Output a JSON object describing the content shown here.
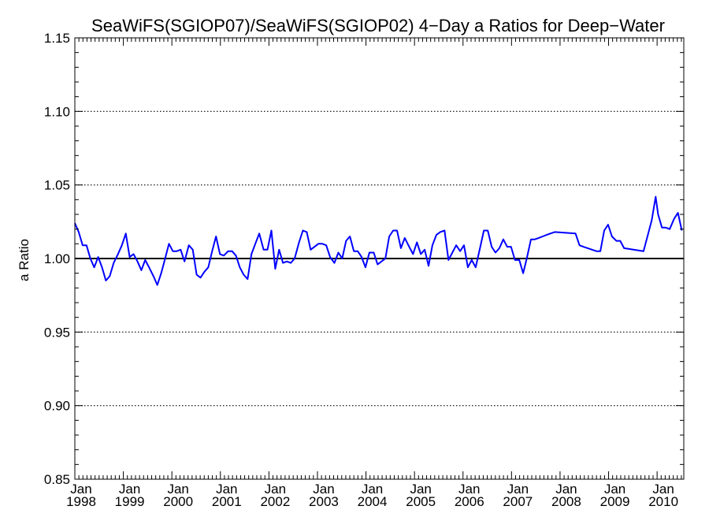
{
  "chart_data": {
    "type": "line",
    "title": "SeaWiFS(SGIOP07)/SeaWiFS(SGIOP02) 4−Day a Ratios for Deep−Water",
    "xlabel": "",
    "ylabel": "a Ratio",
    "xlim": [
      1998.0,
      2010.55
    ],
    "ylim": [
      0.85,
      1.15
    ],
    "yticks": [
      "0.85",
      "0.90",
      "0.95",
      "1.00",
      "1.05",
      "1.10",
      "1.15"
    ],
    "ytick_values": [
      0.85,
      0.9,
      0.95,
      1.0,
      1.05,
      1.1,
      1.15
    ],
    "xticks": [
      {
        "month": "Jan",
        "year": "1998",
        "value": 1998
      },
      {
        "month": "Jan",
        "year": "1999",
        "value": 1999
      },
      {
        "month": "Jan",
        "year": "2000",
        "value": 2000
      },
      {
        "month": "Jan",
        "year": "2001",
        "value": 2001
      },
      {
        "month": "Jan",
        "year": "2002",
        "value": 2002
      },
      {
        "month": "Jan",
        "year": "2003",
        "value": 2003
      },
      {
        "month": "Jan",
        "year": "2004",
        "value": 2004
      },
      {
        "month": "Jan",
        "year": "2005",
        "value": 2005
      },
      {
        "month": "Jan",
        "year": "2006",
        "value": 2006
      },
      {
        "month": "Jan",
        "year": "2007",
        "value": 2007
      },
      {
        "month": "Jan",
        "year": "2008",
        "value": 2008
      },
      {
        "month": "Jan",
        "year": "2009",
        "value": 2009
      },
      {
        "month": "Jan",
        "year": "2010",
        "value": 2010
      }
    ],
    "grid": "dotted horizontal at major y ticks",
    "reference_line": 1.0,
    "line_color": "#0000ff",
    "reference_color": "#000000",
    "series": [
      {
        "x": [
          1998.0,
          1998.08,
          1998.16,
          1998.24,
          1998.32,
          1998.4,
          1998.48,
          1998.56,
          1998.64,
          1998.72,
          1998.8,
          1998.89,
          1998.97,
          1999.05,
          1999.13,
          1999.21,
          1999.29,
          1999.37,
          1999.45,
          1999.53,
          1999.62,
          1999.7,
          1999.78,
          1999.86,
          1999.94,
          2000.02,
          2000.1,
          2000.18,
          2000.26,
          2000.35,
          2000.43,
          2000.51,
          2000.59,
          2000.67,
          2000.75,
          2000.83,
          2000.91,
          2000.99,
          2001.07,
          2001.16,
          2001.24,
          2001.32,
          2001.4,
          2001.48,
          2001.56,
          2001.64,
          2001.72,
          2001.8,
          2001.89,
          2001.97,
          2002.05,
          2002.13,
          2002.21,
          2002.29,
          2002.37,
          2002.45,
          2002.53,
          2002.62,
          2002.7,
          2002.78,
          2002.86,
          2002.94,
          2003.02,
          2003.1,
          2003.18,
          2003.26,
          2003.35,
          2003.43,
          2003.51,
          2003.59,
          2003.67,
          2003.75,
          2003.83,
          2003.91,
          2003.99,
          2004.07,
          2004.16,
          2004.24,
          2004.32,
          2004.4,
          2004.48,
          2004.56,
          2004.64,
          2004.72,
          2004.8,
          2004.89,
          2004.97,
          2005.05,
          2005.13,
          2005.21,
          2005.29,
          2005.37,
          2005.45,
          2005.53,
          2005.62,
          2005.7,
          2005.78,
          2005.86,
          2005.94,
          2006.02,
          2006.1,
          2006.18,
          2006.26,
          2006.35,
          2006.43,
          2006.51,
          2006.59,
          2006.67,
          2006.75,
          2006.83,
          2006.91,
          2006.99,
          2007.07,
          2007.16,
          2007.24,
          2007.32,
          2007.4,
          2007.48,
          2007.56,
          2007.64,
          2007.72,
          2007.8,
          2007.89,
          2008.32,
          2008.4,
          2008.48,
          2008.75,
          2008.83,
          2008.91,
          2008.99,
          2009.07,
          2009.16,
          2009.24,
          2009.32,
          2009.72,
          2009.89,
          2009.97,
          2010.02,
          2010.1,
          2010.18,
          2010.26,
          2010.35,
          2010.43,
          2010.51
        ],
        "y": [
          1.024,
          1.018,
          1.009,
          1.009,
          1.0,
          0.994,
          1.001,
          0.994,
          0.985,
          0.988,
          0.997,
          1.003,
          1.009,
          1.017,
          1.001,
          1.003,
          0.998,
          0.992,
          0.999,
          0.994,
          0.988,
          0.982,
          0.99,
          1.0,
          1.01,
          1.005,
          1.005,
          1.006,
          0.998,
          1.009,
          1.006,
          0.989,
          0.987,
          0.991,
          0.994,
          1.005,
          1.015,
          1.003,
          1.002,
          1.005,
          1.005,
          1.002,
          0.994,
          0.989,
          0.986,
          1.003,
          1.01,
          1.017,
          1.006,
          1.006,
          1.019,
          0.993,
          1.006,
          0.997,
          0.998,
          0.997,
          1.0,
          1.011,
          1.019,
          1.018,
          1.006,
          1.008,
          1.01,
          1.01,
          1.009,
          1.001,
          0.997,
          1.004,
          1.0,
          1.012,
          1.015,
          1.005,
          1.005,
          1.001,
          0.994,
          1.004,
          1.004,
          0.996,
          0.998,
          1.0,
          1.015,
          1.019,
          1.019,
          1.007,
          1.014,
          1.008,
          1.003,
          1.011,
          1.003,
          1.006,
          0.995,
          1.009,
          1.016,
          1.018,
          1.019,
          0.999,
          1.004,
          1.009,
          1.005,
          1.009,
          0.994,
          0.999,
          0.994,
          1.007,
          1.019,
          1.019,
          1.008,
          1.004,
          1.007,
          1.013,
          1.008,
          1.008,
          0.999,
          0.999,
          0.99,
          1.001,
          1.013,
          1.013,
          1.014,
          1.015,
          1.016,
          1.017,
          1.018,
          1.017,
          1.009,
          1.008,
          1.005,
          1.005,
          1.019,
          1.023,
          1.015,
          1.012,
          1.012,
          1.007,
          1.005,
          1.026,
          1.042,
          1.03,
          1.021,
          1.021,
          1.02,
          1.027,
          1.031,
          1.019
        ]
      }
    ]
  }
}
